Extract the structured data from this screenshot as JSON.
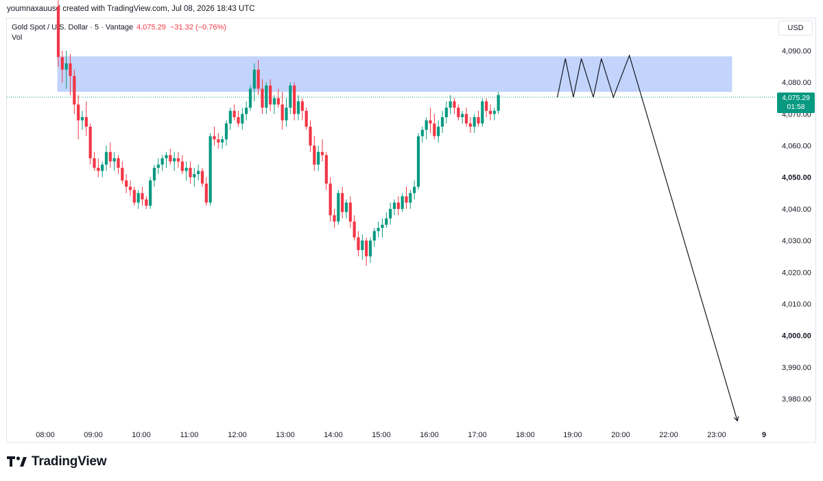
{
  "header": {
    "created_line": "youmnaxauusd created with TradingView.com, Jul 08, 2026 18:43 UTC"
  },
  "legend": {
    "symbol": "Gold Spot / U.S. Dollar · 5 · Vantage",
    "price": "4,075.29",
    "change": "−31.32 (−0.76%)",
    "vol": "Vol"
  },
  "currency_label": "USD",
  "last_price": {
    "price": "4,075.29",
    "countdown": "01:58"
  },
  "branding": {
    "logo_text": "TradingView"
  },
  "colors": {
    "up": "#089981",
    "down": "#f23645",
    "zone": "#b9ccfb",
    "drawing": "#131722"
  },
  "chart_data": {
    "type": "candlestick",
    "interval_minutes": 5,
    "ylim": [
      3972,
      4095
    ],
    "x_ticks": [
      "08:00",
      "09:00",
      "10:00",
      "11:00",
      "12:00",
      "13:00",
      "14:00",
      "15:00",
      "16:00",
      "17:00",
      "18:00",
      "19:00",
      "20:00",
      "22:00",
      "23:00",
      "9"
    ],
    "y_ticks": [
      {
        "value": 4090,
        "label": "4,090.00",
        "bold": false
      },
      {
        "value": 4080,
        "label": "4,080.00",
        "bold": false
      },
      {
        "value": 4070,
        "label": "4,070.00",
        "bold": false
      },
      {
        "value": 4060,
        "label": "4,060.00",
        "bold": false
      },
      {
        "value": 4050,
        "label": "4,050.00",
        "bold": true
      },
      {
        "value": 4040,
        "label": "4,040.00",
        "bold": false
      },
      {
        "value": 4030,
        "label": "4,030.00",
        "bold": false
      },
      {
        "value": 4020,
        "label": "4,020.00",
        "bold": false
      },
      {
        "value": 4010,
        "label": "4,010.00",
        "bold": false
      },
      {
        "value": 4000,
        "label": "4,000.00",
        "bold": true
      },
      {
        "value": 3990,
        "label": "3,990.00",
        "bold": false
      },
      {
        "value": 3980,
        "label": "3,980.00",
        "bold": false
      }
    ],
    "candles": [
      [
        4104,
        4106,
        4085,
        4088
      ],
      [
        4088,
        4090,
        4080,
        4084
      ],
      [
        4084,
        4090,
        4078,
        4086
      ],
      [
        4086,
        4089,
        4076,
        4082
      ],
      [
        4082,
        4084,
        4070,
        4073
      ],
      [
        4073,
        4076,
        4062,
        4068
      ],
      [
        4068,
        4071,
        4065,
        4069
      ],
      [
        4069,
        4074,
        4063,
        4066
      ],
      [
        4066,
        4067,
        4054,
        4056
      ],
      [
        4056,
        4058,
        4052,
        4053
      ],
      [
        4053,
        4056,
        4050,
        4052
      ],
      [
        4052,
        4055,
        4050,
        4054
      ],
      [
        4054,
        4060,
        4052,
        4058
      ],
      [
        4058,
        4061,
        4053,
        4055
      ],
      [
        4055,
        4058,
        4052,
        4056
      ],
      [
        4056,
        4057,
        4051,
        4053
      ],
      [
        4053,
        4055,
        4048,
        4049
      ],
      [
        4049,
        4051,
        4045,
        4047
      ],
      [
        4047,
        4049,
        4044,
        4046
      ],
      [
        4046,
        4047,
        4041,
        4042
      ],
      [
        4042,
        4046,
        4040,
        4045
      ],
      [
        4045,
        4047,
        4041,
        4043
      ],
      [
        4043,
        4044,
        4040,
        4041
      ],
      [
        4041,
        4050,
        4040,
        4049
      ],
      [
        4049,
        4054,
        4047,
        4053
      ],
      [
        4053,
        4056,
        4051,
        4054
      ],
      [
        4054,
        4057,
        4052,
        4056
      ],
      [
        4056,
        4058,
        4053,
        4057
      ],
      [
        4057,
        4059,
        4054,
        4055
      ],
      [
        4055,
        4058,
        4052,
        4056
      ],
      [
        4056,
        4058,
        4053,
        4055
      ],
      [
        4055,
        4057,
        4051,
        4052
      ],
      [
        4052,
        4055,
        4049,
        4053
      ],
      [
        4053,
        4055,
        4048,
        4050
      ],
      [
        4050,
        4053,
        4047,
        4051
      ],
      [
        4051,
        4054,
        4049,
        4052
      ],
      [
        4052,
        4053,
        4047,
        4048
      ],
      [
        4048,
        4050,
        4041,
        4042
      ],
      [
        4042,
        4064,
        4041,
        4063
      ],
      [
        4063,
        4066,
        4060,
        4062
      ],
      [
        4062,
        4064,
        4059,
        4061
      ],
      [
        4061,
        4063,
        4059,
        4062
      ],
      [
        4062,
        4068,
        4060,
        4067
      ],
      [
        4067,
        4072,
        4065,
        4071
      ],
      [
        4071,
        4073,
        4068,
        4069
      ],
      [
        4069,
        4071,
        4066,
        4067
      ],
      [
        4067,
        4072,
        4065,
        4070
      ],
      [
        4070,
        4074,
        4068,
        4072
      ],
      [
        4072,
        4079,
        4071,
        4078
      ],
      [
        4078,
        4086,
        4074,
        4084
      ],
      [
        4084,
        4087,
        4076,
        4078
      ],
      [
        4078,
        4081,
        4070,
        4072
      ],
      [
        4072,
        4080,
        4070,
        4079
      ],
      [
        4079,
        4081,
        4071,
        4073
      ],
      [
        4073,
        4076,
        4070,
        4075
      ],
      [
        4075,
        4078,
        4072,
        4073
      ],
      [
        4073,
        4077,
        4065,
        4068
      ],
      [
        4068,
        4075,
        4066,
        4072
      ],
      [
        4072,
        4080,
        4070,
        4079
      ],
      [
        4079,
        4080,
        4068,
        4070
      ],
      [
        4070,
        4076,
        4068,
        4074
      ],
      [
        4074,
        4075,
        4068,
        4071
      ],
      [
        4071,
        4072,
        4065,
        4066
      ],
      [
        4066,
        4068,
        4058,
        4060
      ],
      [
        4060,
        4063,
        4052,
        4054
      ],
      [
        4054,
        4060,
        4052,
        4058
      ],
      [
        4058,
        4062,
        4055,
        4057
      ],
      [
        4057,
        4058,
        4046,
        4048
      ],
      [
        4048,
        4050,
        4036,
        4038
      ],
      [
        4038,
        4040,
        4034,
        4036
      ],
      [
        4036,
        4046,
        4035,
        4045
      ],
      [
        4045,
        4047,
        4037,
        4039
      ],
      [
        4039,
        4043,
        4037,
        4042
      ],
      [
        4042,
        4044,
        4034,
        4036
      ],
      [
        4036,
        4038,
        4030,
        4031
      ],
      [
        4031,
        4033,
        4025,
        4027
      ],
      [
        4027,
        4032,
        4024,
        4030
      ],
      [
        4030,
        4031,
        4022,
        4025
      ],
      [
        4025,
        4031,
        4023,
        4030
      ],
      [
        4030,
        4034,
        4028,
        4033
      ],
      [
        4033,
        4036,
        4031,
        4034
      ],
      [
        4034,
        4037,
        4031,
        4035
      ],
      [
        4035,
        4039,
        4034,
        4037
      ],
      [
        4037,
        4042,
        4035,
        4040
      ],
      [
        4040,
        4043,
        4038,
        4042
      ],
      [
        4042,
        4044,
        4038,
        4040
      ],
      [
        4040,
        4045,
        4039,
        4044
      ],
      [
        4044,
        4047,
        4040,
        4042
      ],
      [
        4042,
        4046,
        4040,
        4045
      ],
      [
        4045,
        4049,
        4043,
        4047
      ],
      [
        4047,
        4064,
        4046,
        4063
      ],
      [
        4063,
        4066,
        4061,
        4065
      ],
      [
        4065,
        4069,
        4062,
        4068
      ],
      [
        4068,
        4072,
        4064,
        4067
      ],
      [
        4067,
        4070,
        4062,
        4063
      ],
      [
        4063,
        4068,
        4061,
        4066
      ],
      [
        4066,
        4071,
        4064,
        4069
      ],
      [
        4069,
        4074,
        4067,
        4072
      ],
      [
        4072,
        4076,
        4070,
        4074
      ],
      [
        4074,
        4075,
        4070,
        4072
      ],
      [
        4072,
        4073,
        4068,
        4069
      ],
      [
        4069,
        4071,
        4067,
        4070
      ],
      [
        4070,
        4072,
        4066,
        4067
      ],
      [
        4067,
        4069,
        4064,
        4066
      ],
      [
        4066,
        4070,
        4064,
        4069
      ],
      [
        4069,
        4071,
        4066,
        4067
      ],
      [
        4067,
        4075,
        4066,
        4074
      ],
      [
        4074,
        4075,
        4069,
        4071
      ],
      [
        4071,
        4073,
        4068,
        4070
      ],
      [
        4070,
        4072,
        4068,
        4071
      ],
      [
        4071,
        4077,
        4070,
        4076
      ]
    ],
    "annotations": {
      "zone": {
        "x_start": "08:15",
        "x_end": "~23:20",
        "low": 4077,
        "high": 4088
      },
      "projection": [
        {
          "time": "18:40",
          "price": 4075.3
        },
        {
          "time": "18:50",
          "price": 4087.5
        },
        {
          "time": "19:00",
          "price": 4075.3
        },
        {
          "time": "19:10",
          "price": 4087.5
        },
        {
          "time": "19:25",
          "price": 4075.3
        },
        {
          "time": "19:35",
          "price": 4087.5
        },
        {
          "time": "19:50",
          "price": 4075.3
        },
        {
          "time": "20:10",
          "price": 4088.5
        },
        {
          "time": "22:25",
          "price": 3973
        }
      ]
    }
  }
}
